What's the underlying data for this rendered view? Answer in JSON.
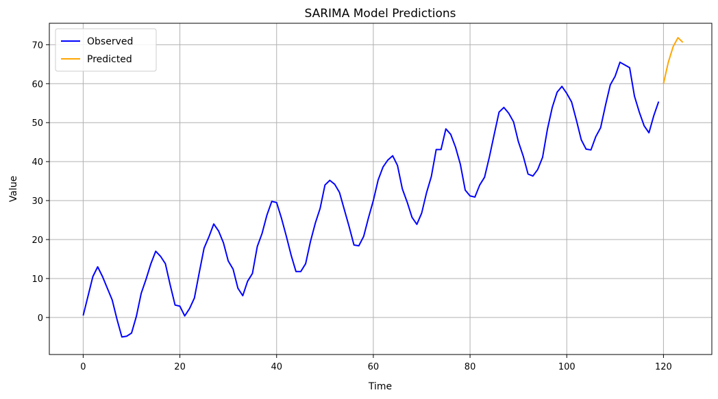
{
  "chart_data": {
    "type": "line",
    "title": "SARIMA Model Predictions",
    "xlabel": "Time",
    "ylabel": "Value",
    "xlim": [
      -7,
      130
    ],
    "ylim": [
      -9.5,
      75.5
    ],
    "xticks": [
      0,
      20,
      40,
      60,
      80,
      100,
      120
    ],
    "yticks": [
      0,
      10,
      20,
      30,
      40,
      50,
      60,
      70
    ],
    "grid": true,
    "legend_position": "top-left",
    "series": [
      {
        "name": "Observed",
        "color": "#0000ff",
        "x_start": 0,
        "values": [
          0.5,
          5.5,
          10.5,
          13.0,
          10.5,
          7.5,
          4.5,
          -0.5,
          -5.0,
          -4.8,
          -4.0,
          0.3,
          6.2,
          9.8,
          13.8,
          17.0,
          15.7,
          13.8,
          8.3,
          3.2,
          2.9,
          0.4,
          2.3,
          5.0,
          11.5,
          17.8,
          20.7,
          24.0,
          22.2,
          19.2,
          14.5,
          12.4,
          7.5,
          5.6,
          9.3,
          11.3,
          18.2,
          21.6,
          26.3,
          29.8,
          29.5,
          25.5,
          20.9,
          16.0,
          11.8,
          11.8,
          13.8,
          19.5,
          24.2,
          28.0,
          34.0,
          35.2,
          34.2,
          32.1,
          27.7,
          23.3,
          18.6,
          18.4,
          20.8,
          25.6,
          30.0,
          35.3,
          38.6,
          40.4,
          41.5,
          39.0,
          33.0,
          29.6,
          25.7,
          23.9,
          26.8,
          32.0,
          36.2,
          43.1,
          43.1,
          48.4,
          47.0,
          43.7,
          39.3,
          32.7,
          31.2,
          30.9,
          34.0,
          36.0,
          41.2,
          47.0,
          52.7,
          53.9,
          52.4,
          50.2,
          45.1,
          41.4,
          36.8,
          36.3,
          38.0,
          41.1,
          48.3,
          53.9,
          57.8,
          59.3,
          57.5,
          55.3,
          50.6,
          45.6,
          43.2,
          43.0,
          46.4,
          48.7,
          54.4,
          59.7,
          61.9,
          65.5,
          64.8,
          64.1,
          56.8,
          52.7,
          49.2,
          47.4,
          51.8,
          55.4
        ]
      },
      {
        "name": "Predicted",
        "color": "#ffa500",
        "x_start": 120,
        "values": [
          60.0,
          65.5,
          69.5,
          71.8,
          70.6
        ]
      }
    ]
  }
}
